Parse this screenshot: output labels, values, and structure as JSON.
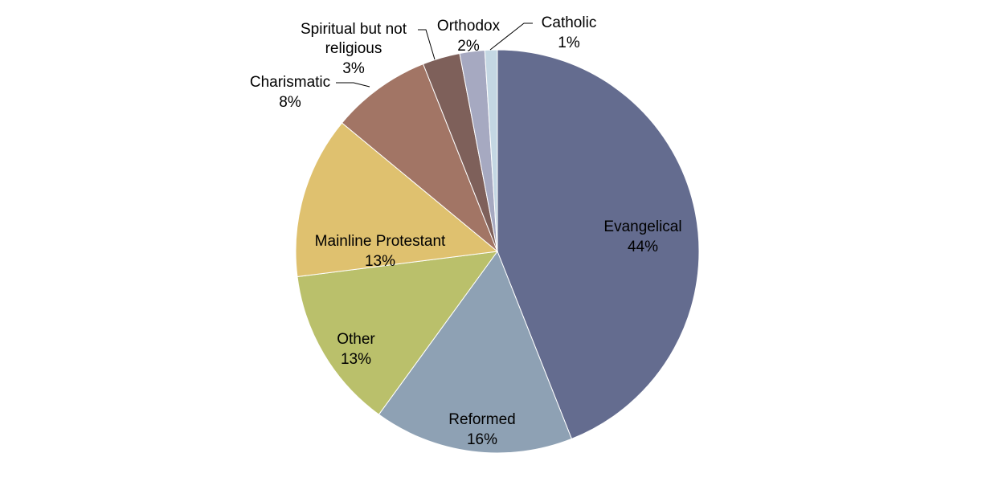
{
  "chart_data": {
    "type": "pie",
    "title": "",
    "slices": [
      {
        "label": "Evangelical",
        "value": 44,
        "display": "44%",
        "color": "#646c8f"
      },
      {
        "label": "Reformed",
        "value": 16,
        "display": "16%",
        "color": "#8ea1b4"
      },
      {
        "label": "Other",
        "value": 13,
        "display": "13%",
        "color": "#bac06b"
      },
      {
        "label": "Mainline Protestant",
        "value": 13,
        "display": "13%",
        "color": "#dfc16f"
      },
      {
        "label": "Charismatic",
        "value": 8,
        "display": "8%",
        "color": "#a27565"
      },
      {
        "label": "Spiritual but not religious",
        "value": 3,
        "display": "3%",
        "color": "#7e605a"
      },
      {
        "label": "Orthodox",
        "value": 2,
        "display": "2%",
        "color": "#a6a9c1"
      },
      {
        "label": "Catholic",
        "value": 1,
        "display": "1%",
        "color": "#c4d7e3"
      }
    ],
    "legend": "none",
    "labels": "category-and-percent"
  }
}
